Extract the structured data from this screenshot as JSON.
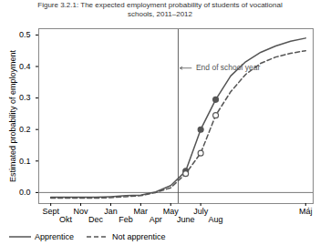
{
  "chart_data": {
    "type": "line",
    "title": "Figure 3.2.1: The expected employment probability of students of vocational\nschools, 2011–2012",
    "ylabel": "Estimated probability of employment",
    "x": [
      0,
      1,
      2,
      3,
      4,
      5,
      6,
      7,
      8,
      9,
      10,
      11,
      12,
      13,
      14,
      15,
      16,
      17
    ],
    "series": [
      {
        "name": "Apprentice",
        "color": "#555555",
        "line_style": "solid",
        "marker": "circle",
        "marker_x": [
          9,
          10,
          11
        ],
        "values": [
          -0.015,
          -0.015,
          -0.015,
          -0.015,
          -0.013,
          -0.01,
          -0.008,
          0.002,
          0.022,
          0.068,
          0.2,
          0.295,
          0.37,
          0.415,
          0.445,
          0.465,
          0.48,
          0.49
        ]
      },
      {
        "name": "Not apprentice",
        "color": "#555555",
        "line_style": "dashed",
        "marker": "open_circle",
        "marker_x": [
          9,
          10,
          11
        ],
        "values": [
          -0.018,
          -0.018,
          -0.018,
          -0.018,
          -0.016,
          -0.013,
          -0.01,
          0.0,
          0.015,
          0.06,
          0.125,
          0.245,
          0.32,
          0.375,
          0.41,
          0.43,
          0.442,
          0.45
        ]
      }
    ],
    "xlim": [
      -0.8,
      17.5
    ],
    "xticks": [
      {
        "value": 0,
        "label": "Sept"
      },
      {
        "value": 1,
        "label": "Okt"
      },
      {
        "value": 2,
        "label": "Nov"
      },
      {
        "value": 3,
        "label": "Dec"
      },
      {
        "value": 4,
        "label": "Jan"
      },
      {
        "value": 5,
        "label": "Feb"
      },
      {
        "value": 6,
        "label": "Mar"
      },
      {
        "value": 7,
        "label": "Apr"
      },
      {
        "value": 8,
        "label": "May"
      },
      {
        "value": 9,
        "label": "June"
      },
      {
        "value": 10,
        "label": "July"
      },
      {
        "value": 11,
        "label": "Aug"
      },
      {
        "value": 17,
        "label": "Máj"
      }
    ],
    "ylim": [
      -0.035,
      0.52
    ],
    "yticks": [
      {
        "value": 0.0,
        "label": "0.0"
      },
      0.1,
      0.2,
      0.3,
      0.4,
      0.5
    ],
    "grid": false,
    "legend": "bottom",
    "vline": 8.5,
    "hline": 0.0,
    "annotations": [
      {
        "text": "End of school year",
        "x": 9.5,
        "y": 0.395
      }
    ]
  }
}
